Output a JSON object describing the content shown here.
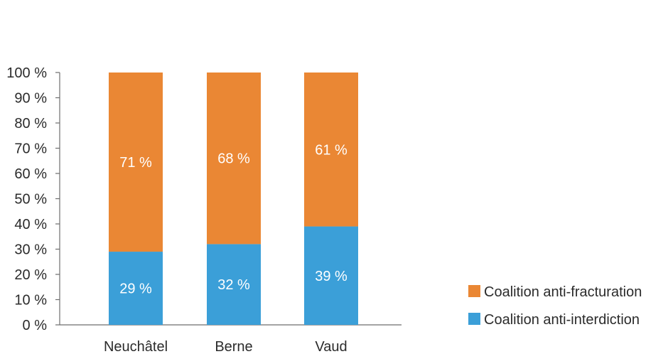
{
  "chart_data": {
    "type": "bar",
    "stacked": true,
    "title": "",
    "xlabel": "",
    "ylabel": "",
    "ylim": [
      0,
      100
    ],
    "y_ticks": [
      0,
      10,
      20,
      30,
      40,
      50,
      60,
      70,
      80,
      90,
      100
    ],
    "y_tick_labels": [
      "0 %",
      "10 %",
      "20 %",
      "30 %",
      "40 %",
      "50 %",
      "60 %",
      "70 %",
      "80 %",
      "90 %",
      "100 %"
    ],
    "categories": [
      "Neuchâtel",
      "Berne",
      "Vaud"
    ],
    "grid": false,
    "legend_position": "bottom-right",
    "series": [
      {
        "name": "Coalition anti-interdiction",
        "color": "#3b9fd8",
        "values": [
          29,
          32,
          39
        ],
        "labels": [
          "29 %",
          "32 %",
          "39 %"
        ]
      },
      {
        "name": "Coalition anti-fracturation",
        "color": "#ea8734",
        "values": [
          71,
          68,
          61
        ],
        "labels": [
          "71 %",
          "68 %",
          "61 %"
        ]
      }
    ],
    "legend_order": [
      1,
      0
    ]
  }
}
